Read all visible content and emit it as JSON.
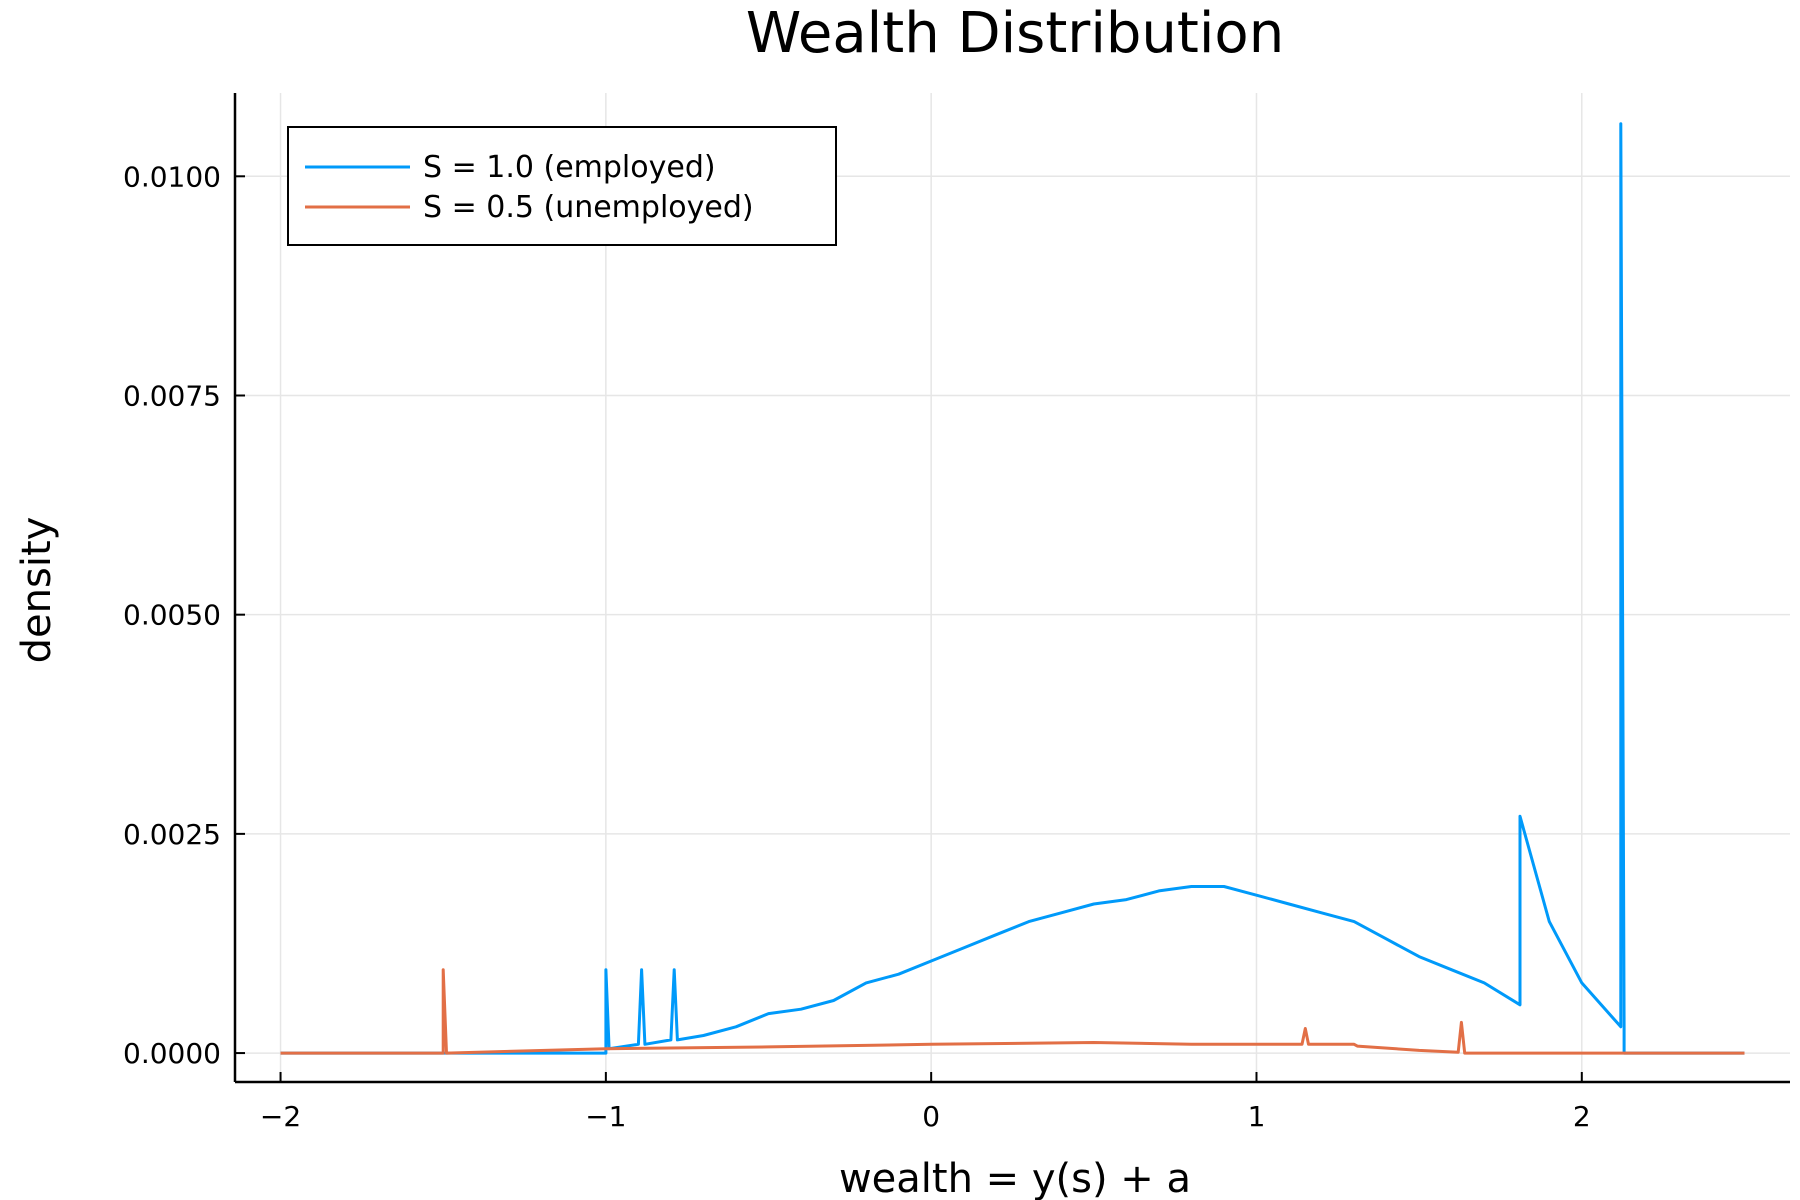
{
  "chart_data": {
    "type": "line",
    "title": "Wealth Distribution",
    "xlabel": "wealth = y(s) + a",
    "ylabel": "density",
    "xlim": [
      -2.14,
      2.64
    ],
    "ylim": [
      -0.00033,
      0.01095
    ],
    "xticks": [
      -2,
      -1,
      0,
      1,
      2
    ],
    "xtick_labels": [
      "−2",
      "−1",
      "0",
      "1",
      "2"
    ],
    "yticks": [
      0.0,
      0.0025,
      0.005,
      0.0075,
      0.01
    ],
    "ytick_labels": [
      "0.0000",
      "0.0025",
      "0.0050",
      "0.0075",
      "0.0100"
    ],
    "grid": true,
    "legend_position": "top-left",
    "series": [
      {
        "name": "S = 1.0 (employed)",
        "color": "#009AFA",
        "x": [
          -2.0,
          -1.5,
          -1.0,
          -1.0,
          -0.99,
          -0.9,
          -0.89,
          -0.88,
          -0.8,
          -0.79,
          -0.78,
          -0.7,
          -0.6,
          -0.5,
          -0.4,
          -0.3,
          -0.2,
          -0.1,
          0.0,
          0.1,
          0.2,
          0.3,
          0.4,
          0.5,
          0.6,
          0.7,
          0.8,
          0.9,
          1.0,
          1.1,
          1.2,
          1.3,
          1.4,
          1.5,
          1.6,
          1.7,
          1.81,
          1.81,
          1.9,
          2.0,
          2.12,
          2.12,
          2.13,
          2.13,
          2.5
        ],
        "y": [
          0.0,
          0.0,
          0.0,
          0.00095,
          5e-05,
          0.0001,
          0.00095,
          0.0001,
          0.00015,
          0.00095,
          0.00015,
          0.0002,
          0.0003,
          0.00045,
          0.0005,
          0.0006,
          0.0008,
          0.0009,
          0.00105,
          0.0012,
          0.00135,
          0.0015,
          0.0016,
          0.0017,
          0.00175,
          0.00185,
          0.0019,
          0.0019,
          0.0018,
          0.0017,
          0.0016,
          0.0015,
          0.0013,
          0.0011,
          0.00095,
          0.0008,
          0.00055,
          0.0027,
          0.0015,
          0.0008,
          0.0003,
          0.0106,
          0.0003,
          0.0,
          0.0
        ]
      },
      {
        "name": "S = 0.5 (unemployed)",
        "color": "#E26F46",
        "x": [
          -2.0,
          -1.5,
          -1.5,
          -1.49,
          -1.0,
          -0.5,
          0.0,
          0.5,
          0.8,
          1.0,
          1.14,
          1.15,
          1.16,
          1.3,
          1.31,
          1.5,
          1.62,
          1.63,
          1.64,
          2.0,
          2.5
        ],
        "y": [
          0.0,
          0.0,
          0.00095,
          0.0,
          5e-05,
          7e-05,
          0.0001,
          0.00012,
          0.0001,
          0.0001,
          0.0001,
          0.00028,
          0.0001,
          0.0001,
          8e-05,
          3e-05,
          1e-05,
          0.00035,
          0.0,
          0.0,
          0.0
        ]
      }
    ]
  }
}
